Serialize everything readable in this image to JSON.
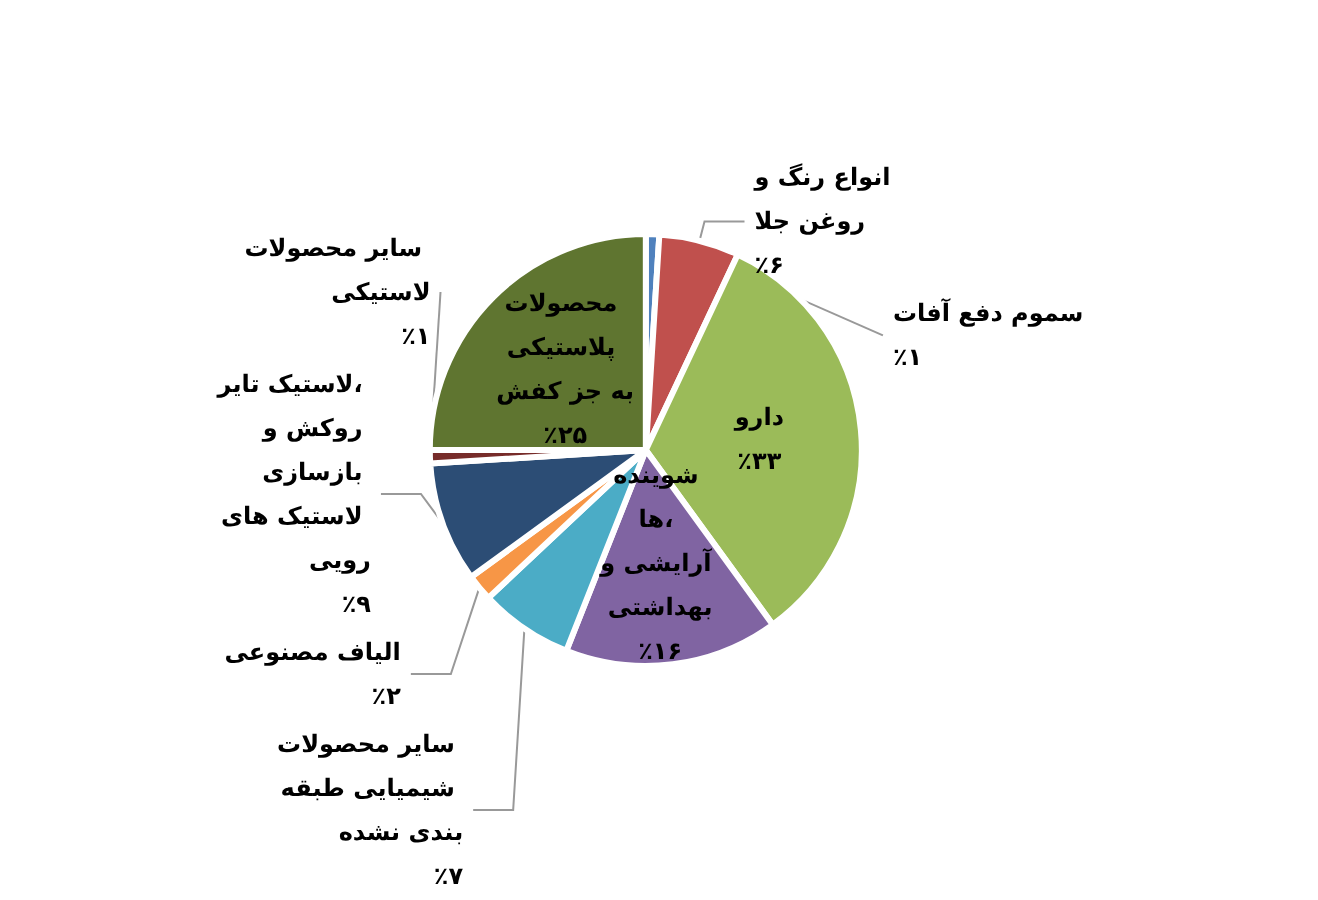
{
  "chart_data": {
    "type": "pie",
    "categories": [
      "سموم دفع آفات",
      "انواع رنگ و روغن جلا",
      "دارو",
      "شوینده ها، آرایشی و بهداشتی",
      "سایر محصولات شیمیایی طبقه بندی نشده",
      "الیاف مصنوعی",
      "لاستیک تایر، روکش و بازسازی لاستیک های رویی",
      "سایر محصولات لاستیکی",
      "محصولات پلاستیکی به جز کفش"
    ],
    "values": [
      1,
      6,
      33,
      16,
      7,
      2,
      9,
      1,
      25
    ],
    "value_labels": [
      "٪۱",
      "٪۶",
      "٪۳۳",
      "٪۱۶",
      "٪۷",
      "٪۲",
      "٪۹",
      "٪۱",
      "٪۲۵"
    ],
    "colors": [
      "#4f81bd",
      "#c0504d",
      "#9bbb59",
      "#8064a2",
      "#4bacc6",
      "#f79646",
      "#2c4d75",
      "#772c2a",
      "#5f7530"
    ],
    "legend": false
  }
}
